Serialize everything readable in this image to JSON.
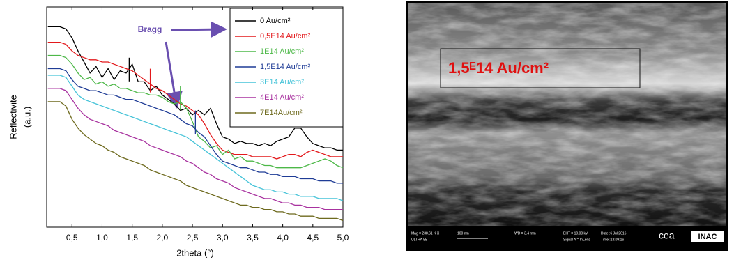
{
  "chart_data": {
    "type": "line",
    "xlabel": "2theta (°)",
    "ylabel": [
      "Reflectivite",
      "(a.u.)"
    ],
    "annotation": "Bragg",
    "xlim": [
      0.08,
      5.0
    ],
    "ylim": [
      0,
      100
    ],
    "xticks": [
      {
        "value": 0.5,
        "label": "0,5"
      },
      {
        "value": 1.0,
        "label": "1,0"
      },
      {
        "value": 1.5,
        "label": "1,5"
      },
      {
        "value": 2.0,
        "label": "2,0"
      },
      {
        "value": 2.5,
        "label": "2,5"
      },
      {
        "value": 3.0,
        "label": "3,0"
      },
      {
        "value": 3.5,
        "label": "3,5"
      },
      {
        "value": 4.0,
        "label": "4,0"
      },
      {
        "value": 4.5,
        "label": "4,5"
      },
      {
        "value": 5.0,
        "label": "5,0"
      }
    ],
    "legend": "top-right",
    "x": [
      0.1,
      0.2,
      0.3,
      0.4,
      0.5,
      0.6,
      0.7,
      0.8,
      0.9,
      1.0,
      1.1,
      1.2,
      1.3,
      1.4,
      1.5,
      1.6,
      1.7,
      1.8,
      1.9,
      2.0,
      2.1,
      2.2,
      2.3,
      2.4,
      2.5,
      2.6,
      2.7,
      2.8,
      2.9,
      3.0,
      3.1,
      3.2,
      3.3,
      3.4,
      3.5,
      3.6,
      3.7,
      3.8,
      3.9,
      4.0,
      4.1,
      4.2,
      4.3,
      4.4,
      4.5,
      4.6,
      4.7,
      4.8,
      4.9,
      5.0
    ],
    "series": [
      {
        "name": "0 Au/cm²",
        "color": "#000000",
        "bragg": 1.45,
        "values": [
          91,
          91,
          91,
          90,
          86,
          80,
          75,
          70,
          73,
          68,
          72,
          67,
          71,
          70,
          74,
          66,
          66,
          62,
          64,
          60,
          58,
          56,
          53,
          54,
          51,
          53,
          51,
          54,
          47,
          41,
          40,
          38,
          39,
          38,
          38,
          37,
          38,
          37,
          39,
          40,
          41,
          45,
          45,
          41,
          38,
          37,
          36,
          36,
          35,
          35
        ]
      },
      {
        "name": "0,5E14 Au/cm²",
        "color": "#e3191c",
        "bragg": 1.8,
        "values": [
          84,
          84,
          84,
          83,
          80,
          78,
          77,
          76,
          76,
          75,
          75,
          74,
          73,
          72,
          71,
          69,
          67,
          65,
          63,
          62,
          60,
          58,
          56,
          55,
          53,
          51,
          47,
          42,
          38,
          35,
          34,
          33,
          33,
          33,
          32,
          32,
          32,
          32,
          31,
          32,
          33,
          33,
          32,
          34,
          35,
          34,
          33,
          32,
          32,
          32
        ]
      },
      {
        "name": "1E14 Au/cm²",
        "color": "#4db848",
        "bragg": 2.3,
        "values": [
          78,
          78,
          78,
          77,
          74,
          70,
          67,
          68,
          65,
          66,
          64,
          65,
          63,
          63,
          62,
          61,
          61,
          60,
          60,
          59,
          57,
          56,
          57,
          54,
          48,
          41,
          39,
          36,
          37,
          33,
          35,
          31,
          32,
          30,
          30,
          29,
          28,
          28,
          27,
          27,
          27,
          27,
          27,
          28,
          29,
          30,
          31,
          30,
          28,
          27
        ]
      },
      {
        "name": "1,5E14 Au/cm²",
        "color": "#1f3c96",
        "bragg": 2.55,
        "values": [
          72,
          72,
          72,
          71,
          67,
          64,
          63,
          62,
          62,
          61,
          60,
          60,
          59,
          58,
          58,
          57,
          56,
          55,
          54,
          53,
          52,
          51,
          49,
          47,
          46,
          43,
          41,
          37,
          33,
          30,
          29,
          28,
          27,
          27,
          26,
          25,
          25,
          24,
          24,
          23,
          23,
          23,
          22,
          22,
          22,
          21,
          21,
          21,
          20,
          20
        ]
      },
      {
        "name": "3E14 Au/cm²",
        "color": "#45c3d8",
        "values": [
          69,
          69,
          69,
          68,
          64,
          60,
          58,
          57,
          56,
          55,
          54,
          53,
          52,
          51,
          50,
          49,
          48,
          47,
          46,
          45,
          44,
          43,
          42,
          41,
          39,
          37,
          35,
          33,
          31,
          29,
          27,
          25,
          23,
          21,
          19,
          18,
          17,
          17,
          16,
          16,
          15,
          15,
          14,
          14,
          14,
          13,
          13,
          13,
          13,
          12
        ]
      },
      {
        "name": "4E14 Au/cm²",
        "color": "#a8329f",
        "values": [
          63,
          63,
          63,
          62,
          58,
          54,
          51,
          49,
          48,
          47,
          46,
          44,
          43,
          42,
          41,
          40,
          39,
          37,
          36,
          35,
          34,
          33,
          32,
          30,
          29,
          27,
          25,
          24,
          22,
          21,
          20,
          18,
          17,
          16,
          15,
          14,
          13,
          13,
          12,
          11,
          11,
          10,
          10,
          9,
          9,
          9,
          8,
          8,
          8,
          8
        ]
      },
      {
        "name": "7E14Au/cm²",
        "color": "#6e6a1e",
        "values": [
          57,
          57,
          57,
          55,
          49,
          45,
          42,
          40,
          38,
          37,
          35,
          34,
          32,
          31,
          30,
          29,
          28,
          26,
          25,
          24,
          23,
          22,
          21,
          19,
          18,
          17,
          16,
          15,
          14,
          13,
          12,
          11,
          10,
          10,
          9,
          9,
          8,
          8,
          7,
          7,
          6,
          6,
          5,
          5,
          5,
          4,
          4,
          4,
          4,
          3
        ]
      }
    ]
  },
  "image": {
    "label": "1,5ᴱ14 Au/cm²",
    "info": [
      "Mag = 238.61 K X",
      "100 nm",
      "WD = 3.4 mm",
      "EHT = 10.00 kV",
      "Date :6 Jul 2016",
      "ULTRA 55",
      "Signal A = InLens",
      "Time :13:09:16"
    ],
    "logos": [
      "cea",
      "INAC"
    ]
  }
}
